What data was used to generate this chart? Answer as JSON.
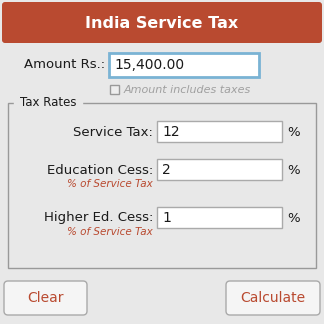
{
  "title": "India Service Tax",
  "title_bg": "#b94a30",
  "title_color": "#ffffff",
  "bg_color": "#e4e4e4",
  "amount_label": "Amount Rs.:",
  "amount_value": "15,400.00",
  "amount_box_border": "#7ab3d4",
  "checkbox_label": "Amount includes taxes",
  "checkbox_label_color": "#a0a0a0",
  "tax_rates_label": "Tax Rates",
  "service_tax_label": "Service Tax:",
  "service_tax_value": "12",
  "education_cess_label": "Education Cess:",
  "education_cess_value": "2",
  "education_cess_note": "% of Service Tax",
  "higher_ed_label": "Higher Ed. Cess:",
  "higher_ed_value": "1",
  "higher_ed_note": "% of Service Tax",
  "percent_sign": "%",
  "clear_btn": "Clear",
  "calculate_btn": "Calculate",
  "btn_text_color": "#b94a30",
  "input_bg": "#ffffff",
  "input_border": "#aaaaaa",
  "btn_bg": "#f5f5f5",
  "btn_border": "#aaaaaa",
  "note_color": "#b94a30",
  "box_border_color": "#999999",
  "text_color": "#1a1a1a",
  "outer_border_color": "#cccccc",
  "outer_bg": "#e8e8e8"
}
